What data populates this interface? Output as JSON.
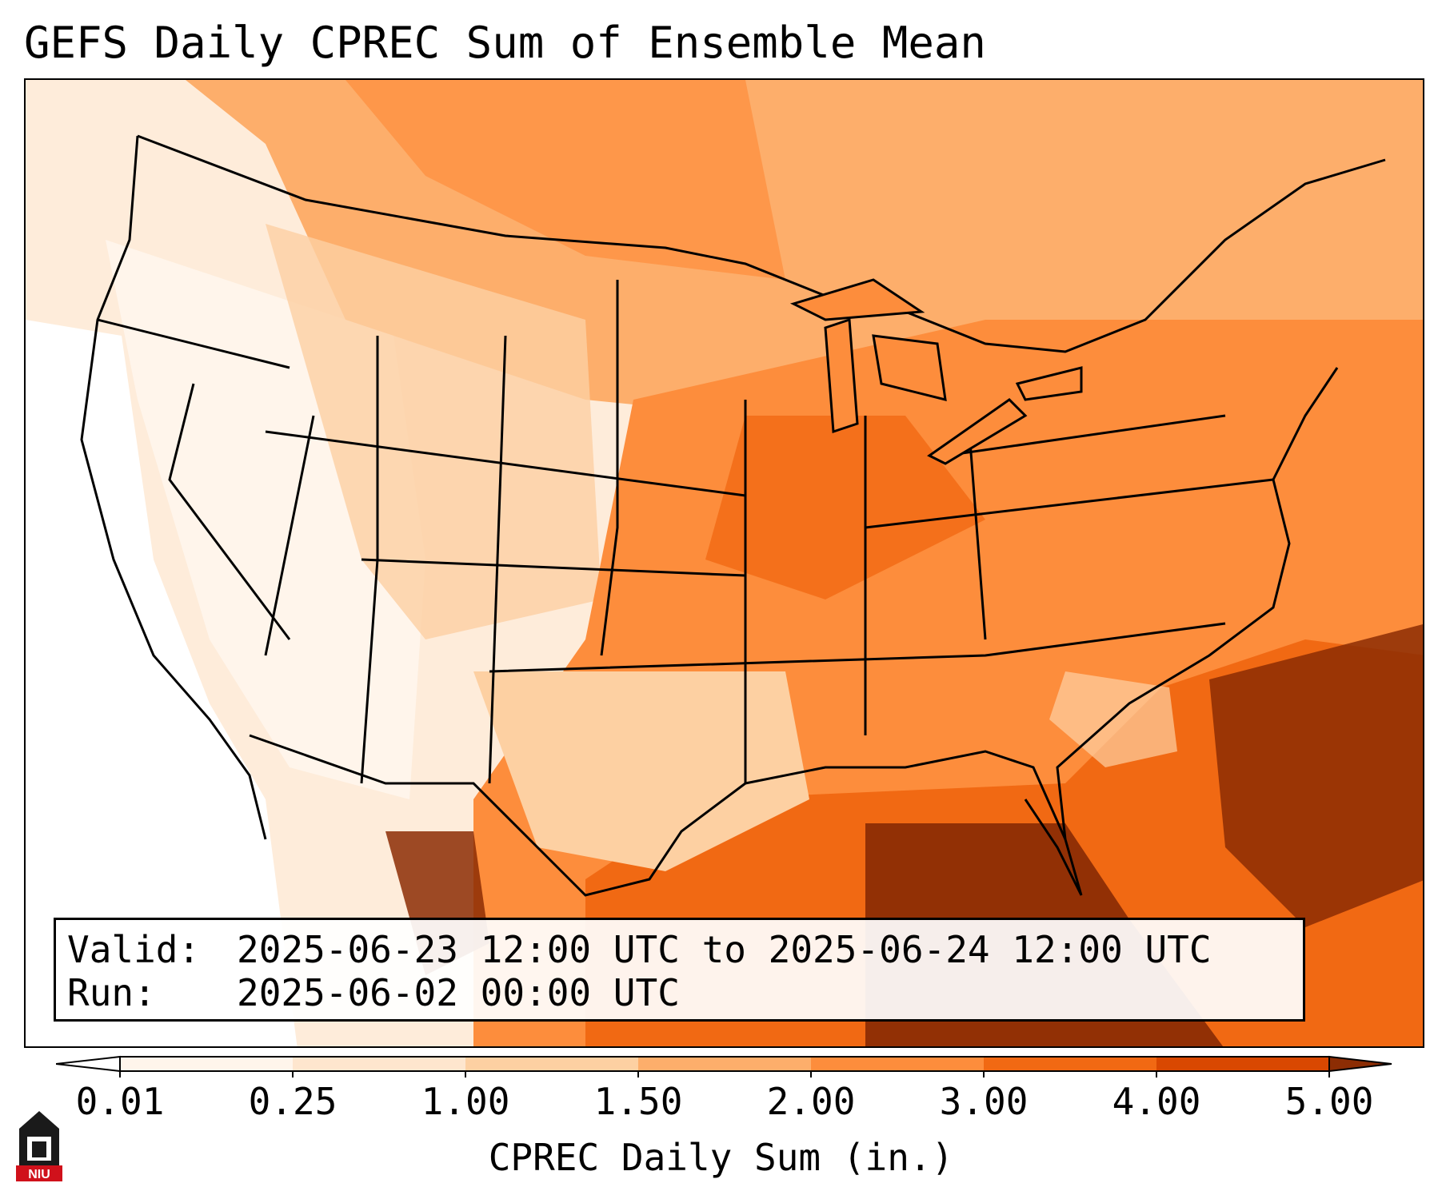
{
  "title": "GEFS Daily CPREC Sum of Ensemble Mean",
  "info": {
    "valid_label": "Valid:",
    "valid_value": "2025-06-23 12:00 UTC to 2025-06-24 12:00 UTC",
    "run_label": "Run:",
    "run_value": "2025-06-02 00:00 UTC"
  },
  "colorbar": {
    "label": "CPREC Daily Sum (in.)",
    "ticks": [
      "0.01",
      "0.25",
      "1.00",
      "1.50",
      "2.00",
      "3.00",
      "4.00",
      "5.00"
    ],
    "colors": [
      "#fff5eb",
      "#fee6ce",
      "#fdd0a2",
      "#fdae6b",
      "#fd8d3c",
      "#f16913",
      "#d94801",
      "#8c2d04"
    ]
  },
  "logo": {
    "text": "NIU",
    "icon": "niu-castle-icon"
  },
  "map": {
    "region": "Contiguous United States",
    "background_color": "#fdebdc",
    "ocean_color": "#fdebdc",
    "land_color": "#fdd0a2",
    "boundary_color": "#000000"
  }
}
